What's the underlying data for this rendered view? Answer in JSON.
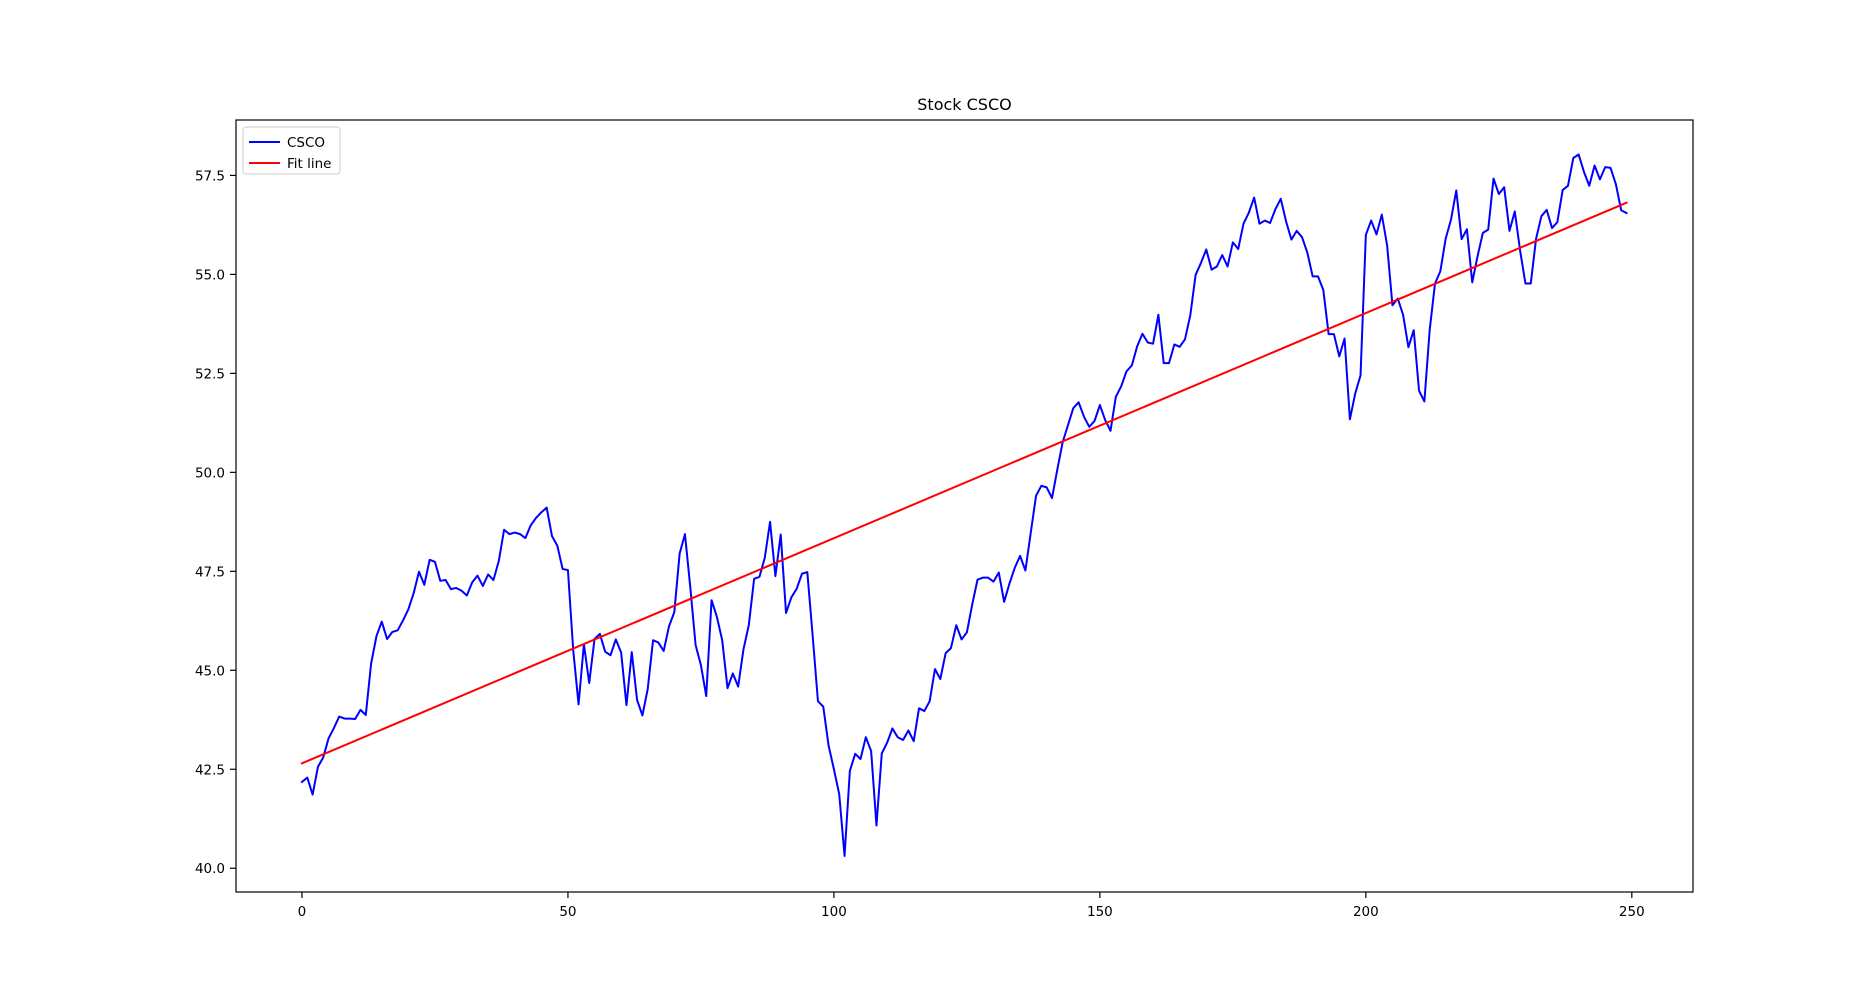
{
  "chart_data": {
    "type": "line",
    "title": "Stock CSCO",
    "xlabel": "",
    "ylabel": "",
    "xlim": [
      -12.4,
      261.5
    ],
    "ylim": [
      39.4,
      58.9
    ],
    "x_ticks": [
      0,
      50,
      100,
      150,
      200,
      250
    ],
    "x_tick_labels": [
      "0",
      "50",
      "100",
      "150",
      "200",
      "250"
    ],
    "y_ticks": [
      40.0,
      42.5,
      45.0,
      47.5,
      50.0,
      52.5,
      55.0,
      57.5
    ],
    "y_tick_labels": [
      "40.0",
      "42.5",
      "45.0",
      "47.5",
      "50.0",
      "52.5",
      "55.0",
      "57.5"
    ],
    "grid": false,
    "legend_placement": "upper-left",
    "series": [
      {
        "name": "CSCO",
        "color": "#0000ff",
        "x_start": 0,
        "values": [
          42.18,
          42.29,
          41.86,
          42.56,
          42.8,
          43.28,
          43.54,
          43.83,
          43.78,
          43.78,
          43.77,
          44.0,
          43.87,
          45.17,
          45.86,
          46.23,
          45.79,
          45.97,
          46.01,
          46.26,
          46.54,
          46.95,
          47.49,
          47.16,
          47.79,
          47.74,
          47.26,
          47.28,
          47.05,
          47.08,
          47.01,
          46.89,
          47.22,
          47.39,
          47.13,
          47.42,
          47.28,
          47.76,
          48.55,
          48.44,
          48.48,
          48.44,
          48.34,
          48.66,
          48.85,
          48.99,
          49.11,
          48.39,
          48.15,
          47.56,
          47.53,
          45.5,
          44.14,
          45.66,
          44.68,
          45.79,
          45.92,
          45.47,
          45.38,
          45.78,
          45.45,
          44.12,
          45.46,
          44.25,
          43.86,
          44.53,
          45.76,
          45.7,
          45.49,
          46.11,
          46.47,
          47.95,
          48.44,
          47.1,
          45.64,
          45.13,
          44.35,
          46.77,
          46.35,
          45.76,
          44.55,
          44.92,
          44.59,
          45.53,
          46.14,
          47.31,
          47.36,
          47.84,
          48.75,
          47.38,
          48.43,
          46.45,
          46.84,
          47.06,
          47.44,
          47.48,
          45.88,
          44.22,
          44.08,
          43.1,
          42.5,
          41.87,
          40.31,
          42.46,
          42.89,
          42.76,
          43.31,
          42.96,
          41.08,
          42.9,
          43.17,
          43.53,
          43.31,
          43.24,
          43.48,
          43.21,
          44.04,
          43.97,
          44.22,
          45.03,
          44.78,
          45.43,
          45.56,
          46.14,
          45.78,
          45.96,
          46.66,
          47.29,
          47.34,
          47.34,
          47.24,
          47.47,
          46.73,
          47.19,
          47.59,
          47.89,
          47.52,
          48.47,
          49.41,
          49.66,
          49.62,
          49.35,
          50.07,
          50.76,
          51.19,
          51.62,
          51.77,
          51.41,
          51.15,
          51.3,
          51.7,
          51.32,
          51.05,
          51.91,
          52.17,
          52.55,
          52.7,
          53.18,
          53.5,
          53.28,
          53.25,
          53.98,
          52.76,
          52.76,
          53.23,
          53.17,
          53.36,
          53.97,
          54.99,
          55.29,
          55.63,
          55.12,
          55.2,
          55.49,
          55.2,
          55.81,
          55.64,
          56.28,
          56.56,
          56.94,
          56.28,
          56.36,
          56.3,
          56.65,
          56.91,
          56.34,
          55.88,
          56.1,
          55.94,
          55.55,
          54.95,
          54.95,
          54.61,
          53.49,
          53.49,
          52.93,
          53.38,
          51.34,
          51.99,
          52.45,
          56.0,
          56.36,
          56.01,
          56.51,
          55.73,
          54.22,
          54.39,
          53.98,
          53.16,
          53.59,
          52.06,
          51.79,
          53.6,
          54.77,
          55.08,
          55.9,
          56.38,
          57.12,
          55.89,
          56.14,
          54.8,
          55.46,
          56.05,
          56.13,
          57.42,
          57.03,
          57.2,
          56.1,
          56.59,
          55.6,
          54.77,
          54.77,
          55.9,
          56.47,
          56.63,
          56.17,
          56.32,
          57.13,
          57.24,
          57.94,
          58.03,
          57.59,
          57.24,
          57.75,
          57.4,
          57.71,
          57.69,
          57.28,
          56.62,
          56.55
        ]
      },
      {
        "name": "Fit line",
        "color": "#ff0000",
        "x": [
          0,
          249
        ],
        "values": [
          42.65,
          56.81
        ]
      }
    ]
  }
}
